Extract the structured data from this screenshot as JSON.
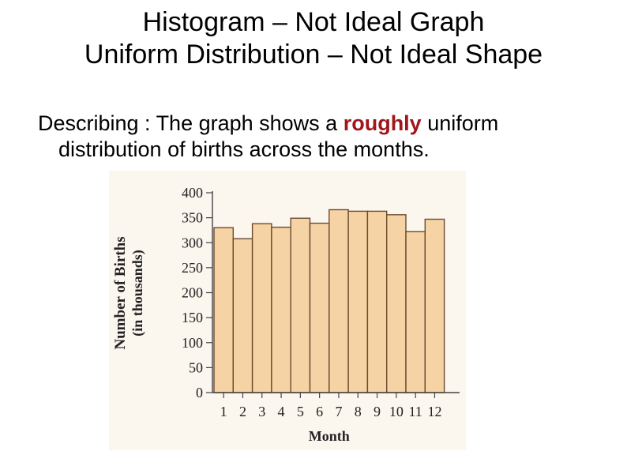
{
  "slide": {
    "title_line1": "Histogram – Not Ideal Graph",
    "title_line2": "Uniform Distribution – Not Ideal Shape",
    "desc_before": "Describing : The graph shows a ",
    "desc_emph": "roughly",
    "desc_after": " uniform",
    "desc_line2": "distribution of births across the months."
  },
  "colors": {
    "bar_fill": "#f6d3a4",
    "bar_stroke": "#6b4a2e",
    "emphasis": "#a0161b",
    "figure_bg": "#fbf6ee"
  },
  "chart_data": {
    "type": "bar",
    "title": "",
    "xlabel": "Month",
    "ylabel_line1": "Number of Births",
    "ylabel_line2": "(in thousands)",
    "categories": [
      "1",
      "2",
      "3",
      "4",
      "5",
      "6",
      "7",
      "8",
      "9",
      "10",
      "11",
      "12"
    ],
    "values": [
      330,
      308,
      338,
      331,
      349,
      339,
      366,
      363,
      363,
      356,
      322,
      347
    ],
    "ylim": [
      0,
      400
    ],
    "yticks": [
      0,
      50,
      100,
      150,
      200,
      250,
      300,
      350,
      400
    ],
    "grid": false,
    "legend": "none"
  }
}
